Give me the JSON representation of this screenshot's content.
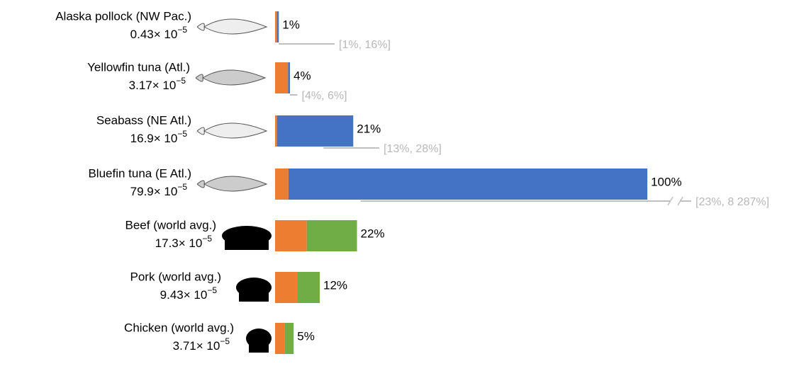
{
  "chart_data": {
    "type": "stacked-bar-horizontal",
    "categories": [
      "Alaska pollock (NW Pac.)",
      "Yellowfin tuna (Atl.)",
      "Seabass (NE Atl.)",
      "Bluefin tuna (E Atl.)",
      "Beef (world avg.)",
      "Pork (world avg.)",
      "Chicken (world avg.)"
    ],
    "mantissas": [
      0.43,
      3.17,
      16.9,
      79.9,
      17.3,
      9.43,
      3.71
    ],
    "multiplier": "× 10",
    "exponent": "−5",
    "series": [
      {
        "color": "#ed7d31",
        "values": [
          0.5,
          3.5,
          0.5,
          3.6,
          8.5,
          6,
          2.5
        ]
      },
      {
        "color": "#4472c4",
        "values": [
          0.5,
          0.5,
          20.5,
          96.4,
          null,
          null,
          null
        ]
      },
      {
        "color": "#70ad47",
        "values": [
          null,
          null,
          null,
          null,
          13.5,
          6,
          2.5
        ]
      }
    ],
    "totals": [
      1,
      4,
      21,
      100,
      22,
      12,
      5
    ],
    "total_labels": [
      "1%",
      "4%",
      "21%",
      "100%",
      "22%",
      "12%",
      "5%"
    ],
    "ci_low": [
      1,
      4,
      13,
      23,
      null,
      null,
      null
    ],
    "ci_high": [
      16,
      6,
      28,
      8287,
      null,
      null,
      null
    ],
    "ci_labels": [
      "[1%, 16%]",
      "[4%, 6%]",
      "[13%, 28%]",
      "[23%, 8 287%]",
      null,
      null,
      null
    ],
    "ci_color": "#c0c0c0",
    "xlim": [
      0,
      137.5
    ]
  }
}
